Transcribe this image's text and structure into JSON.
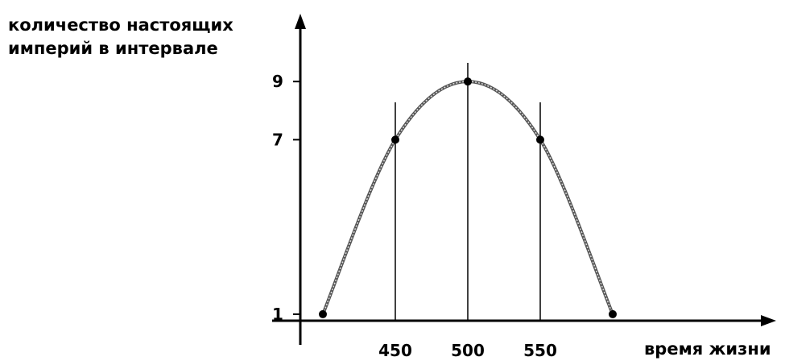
{
  "chart_data": {
    "type": "line",
    "ylabel_lines": [
      "количество настоящих",
      "империй в интервале"
    ],
    "xlabel": "время жизни",
    "x_ticks": [
      450,
      500,
      550
    ],
    "y_ticks": [
      1,
      7,
      9
    ],
    "xlim": [
      360,
      650
    ],
    "ylim": [
      0,
      11
    ],
    "grid": false,
    "series": [
      {
        "points": [
          {
            "x": 400,
            "y": 1
          },
          {
            "x": 450,
            "y": 7
          },
          {
            "x": 500,
            "y": 9
          },
          {
            "x": 550,
            "y": 7
          },
          {
            "x": 600,
            "y": 1
          }
        ]
      }
    ],
    "vertical_markers": [
      450,
      500,
      550
    ]
  }
}
